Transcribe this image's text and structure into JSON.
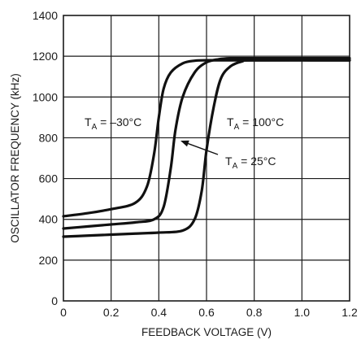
{
  "chart_data": {
    "type": "line",
    "title": "",
    "xlabel": "FEEDBACK VOLTAGE (V)",
    "ylabel": "OSCILLATOR FREQUENCY (kHz)",
    "xlim": [
      0,
      1.2
    ],
    "ylim": [
      0,
      1400
    ],
    "x_ticks": [
      "0",
      "0.2",
      "0.4",
      "0.6",
      "0.8",
      "1.0",
      "1.2"
    ],
    "y_ticks": [
      "0",
      "200",
      "400",
      "600",
      "800",
      "1000",
      "1200",
      "1400"
    ],
    "grid": true,
    "series": [
      {
        "name": "TA = −30°C",
        "x": [
          0,
          0.1,
          0.2,
          0.3,
          0.35,
          0.38,
          0.4,
          0.42,
          0.45,
          0.5,
          0.55,
          0.6,
          0.7,
          0.8,
          1.2
        ],
        "y": [
          415,
          430,
          450,
          480,
          560,
          720,
          900,
          1040,
          1120,
          1165,
          1178,
          1180,
          1180,
          1180,
          1180
        ]
      },
      {
        "name": "TA = 25°C",
        "x": [
          0,
          0.1,
          0.2,
          0.3,
          0.38,
          0.42,
          0.45,
          0.47,
          0.5,
          0.55,
          0.6,
          0.65,
          0.7,
          0.8,
          1.2
        ],
        "y": [
          355,
          365,
          375,
          385,
          400,
          460,
          650,
          840,
          1000,
          1120,
          1170,
          1185,
          1190,
          1190,
          1190
        ]
      },
      {
        "name": "TA = 100°C",
        "x": [
          0,
          0.1,
          0.2,
          0.3,
          0.4,
          0.5,
          0.55,
          0.58,
          0.6,
          0.63,
          0.66,
          0.7,
          0.75,
          0.8,
          1.2
        ],
        "y": [
          315,
          320,
          325,
          330,
          335,
          345,
          400,
          540,
          740,
          950,
          1090,
          1150,
          1175,
          1180,
          1180
        ]
      }
    ],
    "annotations": [
      {
        "parts": [
          "T",
          "A",
          " = –30°C"
        ],
        "target": "TA = −30°C"
      },
      {
        "parts": [
          "T",
          "A",
          " = 100°C"
        ],
        "target": "TA = 100°C"
      },
      {
        "parts": [
          "T",
          "A",
          " = 25°C"
        ],
        "target": "TA = 25°C"
      }
    ]
  }
}
